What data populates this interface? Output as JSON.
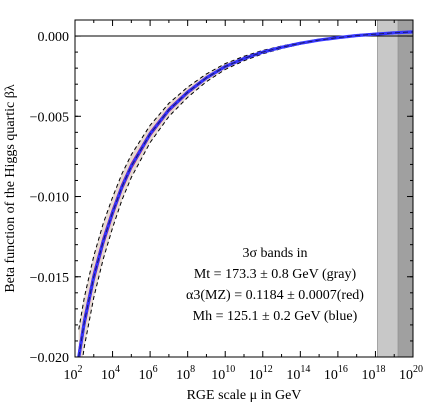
{
  "chart_data": {
    "type": "line",
    "xlabel": "RGE scale μ in GeV",
    "ylabel": "Beta function of the Higgs quartic βλ",
    "xscale": "log10",
    "x_exponent_range": [
      2,
      20
    ],
    "ylim": [
      -0.02,
      0.001
    ],
    "x_tick_exponents": [
      2,
      4,
      6,
      8,
      10,
      12,
      14,
      16,
      18,
      20
    ],
    "x_tick_labels": [
      "10",
      "10",
      "10",
      "10",
      "10",
      "10",
      "10",
      "10",
      "10",
      "10"
    ],
    "x_tick_superscripts": [
      "2",
      "4",
      "6",
      "8",
      "10",
      "12",
      "14",
      "16",
      "18",
      "20"
    ],
    "y_ticks": [
      0.0,
      -0.005,
      -0.01,
      -0.015,
      -0.02
    ],
    "y_tick_labels": [
      "0.000",
      "−0.005",
      "−0.010",
      "−0.015",
      "−0.020"
    ],
    "grid": false,
    "zero_line": true,
    "planck_shading": [
      {
        "x_exponent_range": [
          18.1,
          19.2
        ],
        "color": "#c8c8c8"
      },
      {
        "x_exponent_range": [
          19.2,
          20
        ],
        "color": "#a0a0a0"
      }
    ],
    "annotation": [
      "3σ bands in",
      "Mt = 173.3 ± 0.8 GeV (gray)",
      "α3(MZ) = 0.1184 ± 0.0007(red)",
      "Mh = 125.1 ± 0.2 GeV (blue)"
    ],
    "central_curve": {
      "x_exponent": [
        2.2,
        2.5,
        3,
        3.5,
        4,
        4.5,
        5,
        6,
        7,
        8,
        9,
        10,
        11,
        12,
        13,
        14,
        15,
        16,
        17,
        18,
        19,
        20
      ],
      "y": [
        -0.02,
        -0.0178,
        -0.015,
        -0.0128,
        -0.011,
        -0.0094,
        -0.0081,
        -0.0061,
        -0.0046,
        -0.0035,
        -0.0026,
        -0.0019,
        -0.0014,
        -0.001,
        -0.0007,
        -0.00045,
        -0.00025,
        -0.0001,
        3e-05,
        0.00012,
        0.0002,
        0.00026
      ]
    },
    "series": [
      {
        "name": "Mt = 173.3 ± 0.8 GeV (gray)",
        "color": "#d8d8d8",
        "band_halfwidth_rel": 0.085
      },
      {
        "name": "α3(MZ) = 0.1184 ± 0.0007(red)",
        "color": "#ff2020",
        "band_halfwidth_rel": 0.015
      },
      {
        "name": "Mh = 125.1 ± 0.2 GeV (blue)",
        "color": "#2020ff",
        "band_halfwidth_rel": 0.003
      }
    ],
    "band_colors": {
      "gray_fill": "#e6d9d3",
      "red_fill": "#f4a6b4",
      "blue_line": "#3535ff",
      "dashed": "#000000"
    }
  }
}
